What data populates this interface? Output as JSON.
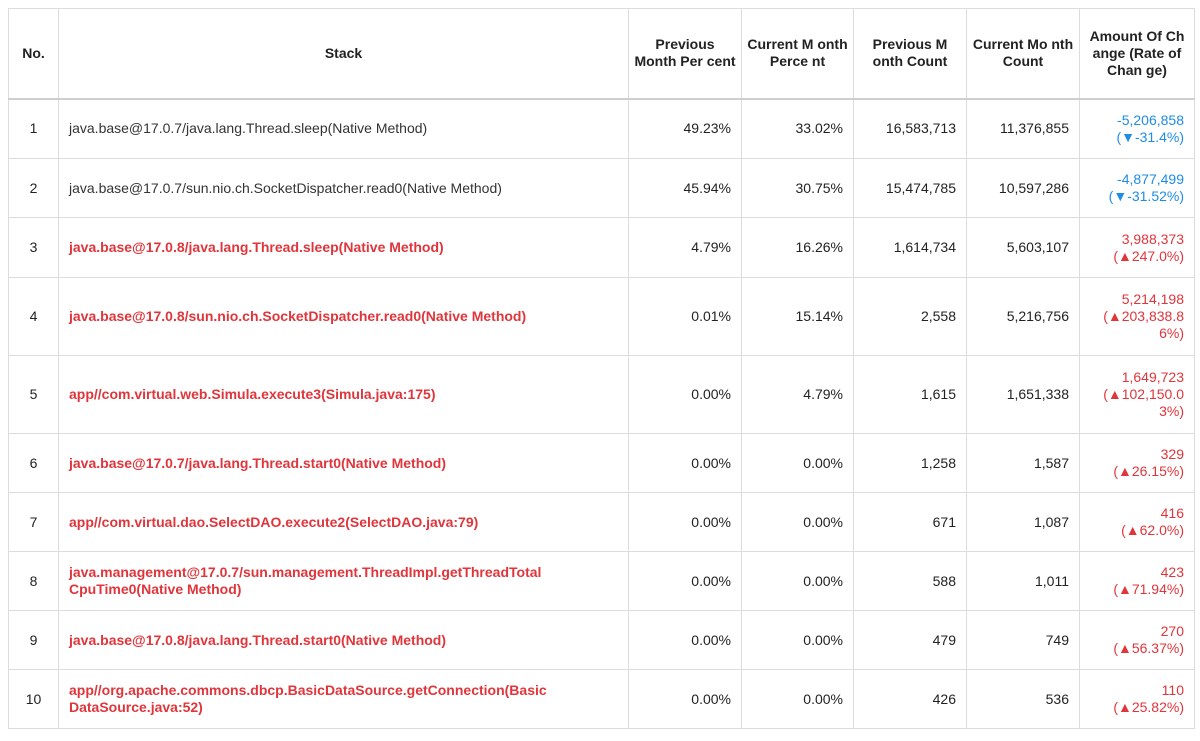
{
  "columns": {
    "no": "No.",
    "stack": "Stack",
    "prev_pct": "Previous Month Per cent",
    "curr_pct": "Current M onth Perce nt",
    "prev_cnt": "Previous M onth Count",
    "curr_cnt": "Current Mo nth Count",
    "change": "Amount Of Ch ange (Rate of Chan ge)"
  },
  "colors": {
    "increase": "#e0353b",
    "decrease": "#1f8ce6",
    "border": "#dcdcdc"
  },
  "rows": [
    {
      "no": "1",
      "stack": "java.base@17.0.7/java.lang.Thread.sleep(Native Method)",
      "highlight": false,
      "prev_pct": "49.23%",
      "curr_pct": "33.02%",
      "prev_cnt": "16,583,713",
      "curr_cnt": "11,376,855",
      "change": "-5,206,858",
      "rate": "(▼-31.4%)",
      "direction": "down",
      "height": 60
    },
    {
      "no": "2",
      "stack": "java.base@17.0.7/sun.nio.ch.SocketDispatcher.read0(Native Method)",
      "highlight": false,
      "prev_pct": "45.94%",
      "curr_pct": "30.75%",
      "prev_cnt": "15,474,785",
      "curr_cnt": "10,597,286",
      "change": "-4,877,499",
      "rate": "(▼-31.52%)",
      "direction": "down",
      "height": 59
    },
    {
      "no": "3",
      "stack": "java.base@17.0.8/java.lang.Thread.sleep(Native Method)",
      "highlight": true,
      "prev_pct": "4.79%",
      "curr_pct": "16.26%",
      "prev_cnt": "1,614,734",
      "curr_cnt": "5,603,107",
      "change": "3,988,373",
      "rate": "(▲247.0%)",
      "direction": "up",
      "height": 60
    },
    {
      "no": "4",
      "stack": "java.base@17.0.8/sun.nio.ch.SocketDispatcher.read0(Native Method)",
      "highlight": true,
      "prev_pct": "0.01%",
      "curr_pct": "15.14%",
      "prev_cnt": "2,558",
      "curr_cnt": "5,216,756",
      "change": "5,214,198",
      "rate": "(▲203,838.8 6%)",
      "direction": "up",
      "height": 78
    },
    {
      "no": "5",
      "stack": "app//com.virtual.web.Simula.execute3(Simula.java:175)",
      "highlight": true,
      "prev_pct": "0.00%",
      "curr_pct": "4.79%",
      "prev_cnt": "1,615",
      "curr_cnt": "1,651,338",
      "change": "1,649,723",
      "rate": "(▲102,150.0 3%)",
      "direction": "up",
      "height": 78
    },
    {
      "no": "6",
      "stack": "java.base@17.0.7/java.lang.Thread.start0(Native Method)",
      "highlight": true,
      "prev_pct": "0.00%",
      "curr_pct": "0.00%",
      "prev_cnt": "1,258",
      "curr_cnt": "1,587",
      "change": "329",
      "rate": "(▲26.15%)",
      "direction": "up",
      "height": 59
    },
    {
      "no": "7",
      "stack": "app//com.virtual.dao.SelectDAO.execute2(SelectDAO.java:79)",
      "highlight": true,
      "prev_pct": "0.00%",
      "curr_pct": "0.00%",
      "prev_cnt": "671",
      "curr_cnt": "1,087",
      "change": "416",
      "rate": "(▲62.0%)",
      "direction": "up",
      "height": 59
    },
    {
      "no": "8",
      "stack": "java.management@17.0.7/sun.management.ThreadImpl.getThreadTotal CpuTime0(Native Method)",
      "highlight": true,
      "prev_pct": "0.00%",
      "curr_pct": "0.00%",
      "prev_cnt": "588",
      "curr_cnt": "1,011",
      "change": "423",
      "rate": "(▲71.94%)",
      "direction": "up",
      "height": 59
    },
    {
      "no": "9",
      "stack": "java.base@17.0.8/java.lang.Thread.start0(Native Method)",
      "highlight": true,
      "prev_pct": "0.00%",
      "curr_pct": "0.00%",
      "prev_cnt": "479",
      "curr_cnt": "749",
      "change": "270",
      "rate": "(▲56.37%)",
      "direction": "up",
      "height": 59
    },
    {
      "no": "10",
      "stack": "app//org.apache.commons.dbcp.BasicDataSource.getConnection(Basic DataSource.java:52)",
      "highlight": true,
      "prev_pct": "0.00%",
      "curr_pct": "0.00%",
      "prev_cnt": "426",
      "curr_cnt": "536",
      "change": "110",
      "rate": "(▲25.82%)",
      "direction": "up",
      "height": 59
    }
  ]
}
